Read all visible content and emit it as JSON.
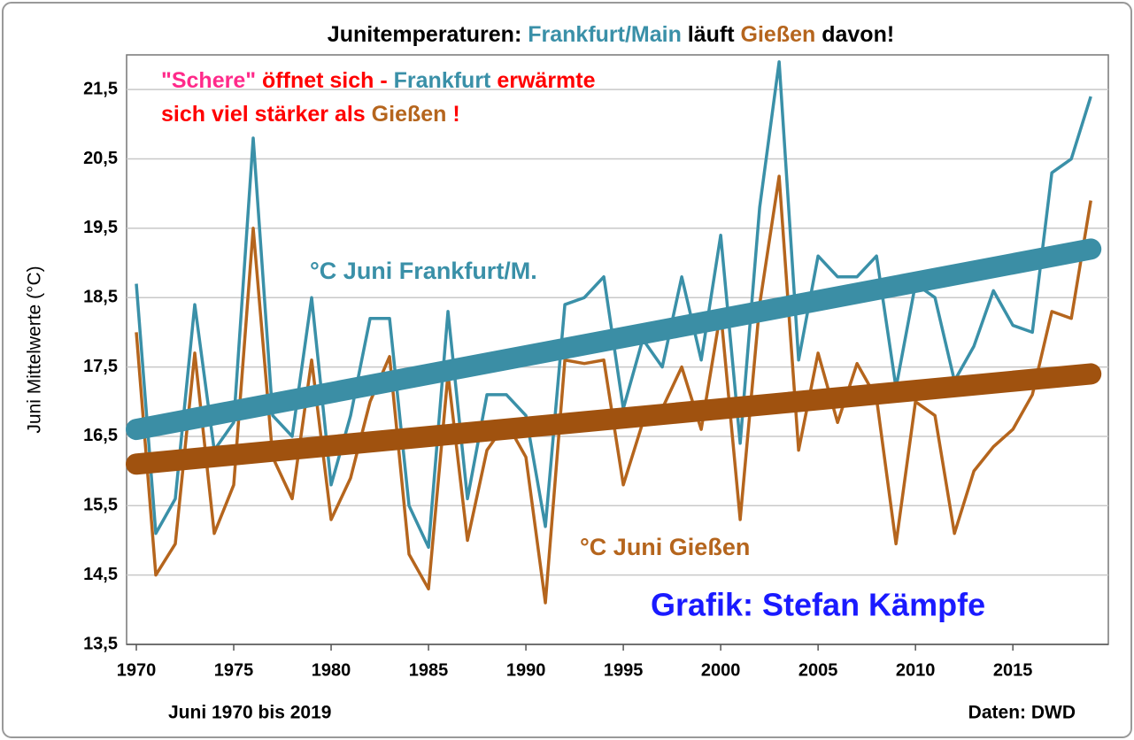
{
  "chart_data": {
    "type": "line",
    "title_parts": [
      {
        "text": "Junitemperaturen: ",
        "color": "#000000"
      },
      {
        "text": "Frankfurt/Main",
        "color": "#3a90a8"
      },
      {
        "text": " läuft ",
        "color": "#000000"
      },
      {
        "text": "Gießen",
        "color": "#b5651d"
      },
      {
        "text": " davon!",
        "color": "#000000"
      }
    ],
    "subtitle_lines": [
      [
        {
          "text": "\"Schere\"",
          "color": "#ff2a8a"
        },
        {
          "text": " öffnet sich - ",
          "color": "#ff0000"
        },
        {
          "text": "Frankfurt",
          "color": "#3a90a8"
        },
        {
          "text": " erwärmte",
          "color": "#ff0000"
        }
      ],
      [
        {
          "text": "sich viel stärker als ",
          "color": "#ff0000"
        },
        {
          "text": "Gießen",
          "color": "#b5651d"
        },
        {
          "text": " !",
          "color": "#ff0000"
        }
      ]
    ],
    "y_label": "Juni Mittelwerte (°C)",
    "x_note": "Juni 1970 bis 2019",
    "source": "Daten: DWD",
    "credit": "Grafik: Stefan Kämpfe",
    "credit_color": "#1a1aff",
    "x": [
      1970,
      1971,
      1972,
      1973,
      1974,
      1975,
      1976,
      1977,
      1978,
      1979,
      1980,
      1981,
      1982,
      1983,
      1984,
      1985,
      1986,
      1987,
      1988,
      1989,
      1990,
      1991,
      1992,
      1993,
      1994,
      1995,
      1996,
      1997,
      1998,
      1999,
      2000,
      2001,
      2002,
      2003,
      2004,
      2005,
      2006,
      2007,
      2008,
      2009,
      2010,
      2011,
      2012,
      2013,
      2014,
      2015,
      2016,
      2017,
      2018,
      2019
    ],
    "xlim": [
      1969.5,
      2019.9
    ],
    "xticks": [
      1970,
      1975,
      1980,
      1985,
      1990,
      1995,
      2000,
      2005,
      2010,
      2015
    ],
    "ylim": [
      13.5,
      22.0
    ],
    "yticks": [
      {
        "value": 13.5,
        "label": "13,5"
      },
      {
        "value": 14.5,
        "label": "14,5"
      },
      {
        "value": 15.5,
        "label": "15,5"
      },
      {
        "value": 16.5,
        "label": "16,5"
      },
      {
        "value": 17.5,
        "label": "17,5"
      },
      {
        "value": 18.5,
        "label": "18,5"
      },
      {
        "value": 19.5,
        "label": "19,5"
      },
      {
        "value": 20.5,
        "label": "20,5"
      },
      {
        "value": 21.5,
        "label": "21,5"
      }
    ],
    "grid": true,
    "series": [
      {
        "name": "°C Juni Frankfurt/M.",
        "color": "#3a90a8",
        "values": [
          18.7,
          15.1,
          15.6,
          18.4,
          16.3,
          16.7,
          20.8,
          16.8,
          16.5,
          18.5,
          15.8,
          16.8,
          18.2,
          18.2,
          15.5,
          14.9,
          18.3,
          15.6,
          17.1,
          17.1,
          16.8,
          15.2,
          18.4,
          18.5,
          18.8,
          16.9,
          17.9,
          17.5,
          18.8,
          17.6,
          19.4,
          16.4,
          19.8,
          21.9,
          17.6,
          19.1,
          18.8,
          18.8,
          19.1,
          17.2,
          18.7,
          18.5,
          17.3,
          17.8,
          18.6,
          18.1,
          18.0,
          20.3,
          20.5,
          21.4
        ],
        "trend": {
          "x": [
            1970,
            2019
          ],
          "values": [
            16.6,
            19.2
          ],
          "color": "#3b8ea5"
        }
      },
      {
        "name": "°C Juni Gießen",
        "color": "#b5651d",
        "values": [
          18.0,
          14.5,
          14.95,
          17.7,
          15.1,
          15.8,
          19.5,
          16.2,
          15.6,
          17.6,
          15.3,
          15.9,
          17.0,
          17.65,
          14.8,
          14.3,
          17.4,
          15.0,
          16.3,
          16.7,
          16.2,
          14.1,
          17.6,
          17.55,
          17.6,
          15.8,
          16.7,
          16.9,
          17.5,
          16.6,
          18.3,
          15.3,
          18.4,
          20.25,
          16.3,
          17.7,
          16.7,
          17.55,
          17.05,
          14.95,
          17.0,
          16.8,
          15.1,
          16.0,
          16.35,
          16.6,
          17.1,
          18.3,
          18.2,
          19.9
        ],
        "trend": {
          "x": [
            1970,
            2019
          ],
          "values": [
            16.1,
            17.4
          ],
          "color": "#a0520f"
        }
      }
    ]
  }
}
